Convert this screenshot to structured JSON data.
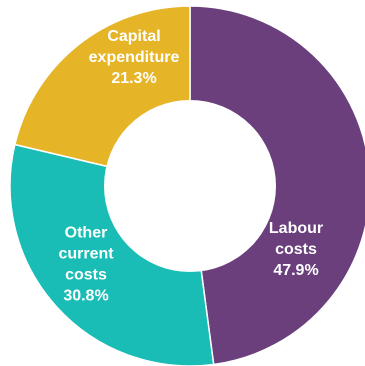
{
  "chart_data": {
    "type": "pie",
    "title": "",
    "donut": true,
    "direction": "clockwise",
    "start": "top",
    "series": [
      {
        "categories": [
          "Labour costs",
          "Other current costs",
          "Capital expenditure"
        ],
        "values": [
          47.9,
          30.8,
          21.3
        ],
        "labels": [
          "47.9%",
          "30.8%",
          "21.3%"
        ]
      }
    ],
    "slices": [
      {
        "name_lines": [
          "Labour",
          "costs"
        ],
        "value": 47.9,
        "pct_label": "47.9%",
        "color": "#6a3f7c"
      },
      {
        "name_lines": [
          "Other",
          "current",
          "costs"
        ],
        "value": 30.8,
        "pct_label": "30.8%",
        "color": "#19bdb6"
      },
      {
        "name_lines": [
          "Capital",
          "expenditure"
        ],
        "value": 21.3,
        "pct_label": "21.3%",
        "color": "#e6b427"
      }
    ],
    "legend": "none",
    "background": "#ffffff"
  }
}
